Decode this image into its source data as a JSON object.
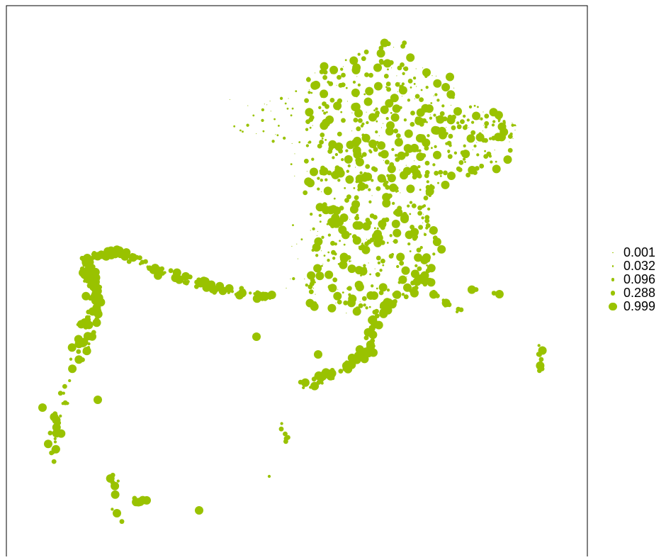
{
  "map": {
    "point_color": "#99c200",
    "frame_color": "#000000",
    "legend": {
      "entries": [
        {
          "label": "0.001",
          "value": 0.001
        },
        {
          "label": "0.032",
          "value": 0.032
        },
        {
          "label": "0.096",
          "value": 0.096
        },
        {
          "label": "0.288",
          "value": 0.288
        },
        {
          "label": "0.999",
          "value": 0.999
        }
      ]
    }
  }
}
